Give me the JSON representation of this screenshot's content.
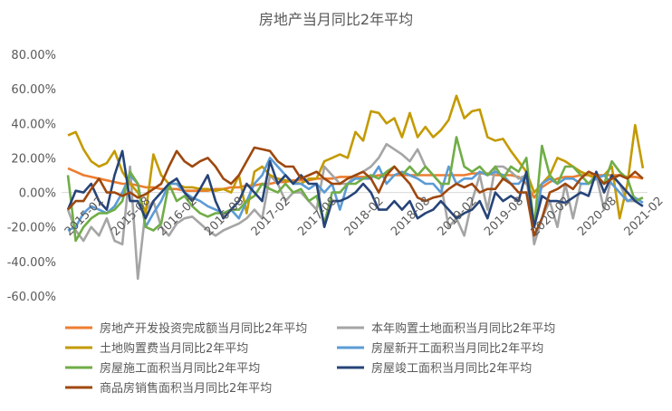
{
  "chart_data": {
    "type": "line",
    "title": "房地产当月同比2年平均",
    "xlabel": "",
    "ylabel": "",
    "ylim": [
      -60,
      80
    ],
    "y_ticks": [
      "80.00%",
      "60.00%",
      "40.00%",
      "20.00%",
      "0.00%",
      "-20.00%",
      "-40.00%",
      "-60.00%"
    ],
    "y_tick_values": [
      80,
      60,
      40,
      20,
      0,
      -20,
      -40,
      -60
    ],
    "x_start": "2015-02",
    "x_end": "2021-04",
    "x_ticks": [
      "2015-02",
      "2015-08",
      "2016-02",
      "2016-08",
      "2017-02",
      "2017-08",
      "2018-02",
      "2018-08",
      "2019-02",
      "2019-08",
      "2020-02",
      "2020-08",
      "2021-02"
    ],
    "grid": "zero line only",
    "legend_position": "bottom",
    "series": [
      {
        "name": "房地产开发投资完成额当月同比2年平均",
        "color": "#ED7D31",
        "values": [
          14,
          12,
          10,
          9,
          8,
          7,
          6,
          5,
          5,
          4,
          3,
          3,
          2,
          2,
          2,
          1,
          1,
          1,
          1,
          2,
          2,
          3,
          3,
          4,
          4,
          5,
          5,
          6,
          6,
          7,
          7,
          7,
          8,
          8,
          8,
          9,
          9,
          9,
          9,
          9,
          10,
          10,
          10,
          10,
          10,
          10,
          10,
          10,
          10,
          10,
          10,
          10,
          11,
          11,
          11,
          10,
          10,
          10,
          9,
          5,
          -3,
          3,
          6,
          8,
          9,
          9,
          10,
          10,
          10,
          10,
          10,
          10,
          9,
          9,
          8
        ]
      },
      {
        "name": "本年购置土地面积当月同比2年平均",
        "color": "#A5A5A5",
        "values": [
          -10,
          -22,
          -28,
          -20,
          -25,
          -15,
          -28,
          -30,
          15,
          -50,
          -10,
          -5,
          -20,
          -25,
          -18,
          -15,
          -14,
          -18,
          -22,
          -25,
          -22,
          -20,
          -18,
          -15,
          -10,
          -15,
          10,
          5,
          -5,
          0,
          0,
          -5,
          -10,
          15,
          10,
          5,
          5,
          10,
          12,
          15,
          20,
          28,
          25,
          22,
          18,
          25,
          15,
          10,
          5,
          -20,
          -15,
          -25,
          -5,
          10,
          -10,
          15,
          15,
          12,
          8,
          10,
          -30,
          -15,
          -5,
          -20,
          5,
          -15,
          5,
          5,
          10,
          -10,
          10,
          5,
          -5,
          -5,
          -3
        ]
      },
      {
        "name": "土地购置费当月同比2年平均",
        "color": "#C49A00",
        "values": [
          33,
          35,
          25,
          18,
          15,
          17,
          24,
          12,
          5,
          0,
          -12,
          22,
          10,
          5,
          5,
          3,
          3,
          2,
          2,
          1,
          2,
          0,
          10,
          -12,
          12,
          15,
          10,
          8,
          7,
          6,
          5,
          8,
          8,
          18,
          20,
          22,
          20,
          35,
          30,
          47,
          46,
          40,
          43,
          32,
          46,
          32,
          38,
          32,
          36,
          42,
          56,
          43,
          47,
          48,
          32,
          30,
          31,
          24,
          18,
          12,
          0,
          5,
          10,
          20,
          18,
          15,
          12,
          10,
          8,
          10,
          15,
          -15,
          5,
          39,
          14
        ]
      },
      {
        "name": "房屋新开工面积当月同比2年平均",
        "color": "#5B9BD5",
        "values": [
          -22,
          -20,
          -12,
          -8,
          -10,
          -12,
          -8,
          0,
          10,
          5,
          -20,
          -12,
          -5,
          5,
          5,
          0,
          -3,
          -5,
          -8,
          -10,
          -12,
          -10,
          -15,
          -5,
          5,
          10,
          20,
          15,
          10,
          5,
          5,
          2,
          5,
          0,
          5,
          -10,
          5,
          8,
          8,
          8,
          15,
          5,
          10,
          12,
          10,
          8,
          5,
          5,
          0,
          15,
          5,
          8,
          8,
          12,
          10,
          12,
          10,
          5,
          5,
          10,
          -20,
          5,
          8,
          5,
          8,
          8,
          5,
          5,
          8,
          10,
          5,
          0,
          -5,
          -3,
          -6
        ]
      },
      {
        "name": "房屋施工面积当月同比2年平均",
        "color": "#70AD47",
        "values": [
          10,
          -28,
          -20,
          -15,
          -12,
          -12,
          -10,
          -5,
          12,
          5,
          -20,
          -22,
          -18,
          5,
          -5,
          -2,
          -8,
          -12,
          -14,
          -12,
          -12,
          -10,
          -10,
          -5,
          -2,
          5,
          2,
          0,
          5,
          0,
          2,
          -5,
          -2,
          -18,
          0,
          0,
          5,
          5,
          8,
          10,
          8,
          12,
          15,
          10,
          15,
          10,
          15,
          10,
          5,
          5,
          32,
          15,
          12,
          15,
          10,
          15,
          8,
          15,
          12,
          20,
          -20,
          27,
          10,
          5,
          15,
          15,
          10,
          5,
          10,
          5,
          18,
          12,
          8,
          -5,
          -3
        ]
      },
      {
        "name": "房屋竣工面积当月同比2年平均",
        "color": "#264478",
        "values": [
          -10,
          1,
          0,
          5,
          -5,
          -10,
          10,
          24,
          -5,
          -5,
          -15,
          -5,
          0,
          5,
          8,
          0,
          -5,
          2,
          10,
          -5,
          -15,
          -10,
          -5,
          5,
          0,
          -5,
          18,
          5,
          10,
          5,
          10,
          5,
          5,
          -20,
          -5,
          -5,
          -3,
          0,
          5,
          0,
          -10,
          -10,
          -5,
          -10,
          -5,
          -15,
          -12,
          -10,
          -5,
          -10,
          -15,
          -12,
          -10,
          -5,
          -15,
          0,
          -5,
          -2,
          -5,
          12,
          -20,
          -2,
          -5,
          -5,
          -6,
          -3,
          0,
          -2,
          12,
          0,
          10,
          5,
          0,
          -5,
          -8
        ]
      },
      {
        "name": "商品房销售面积当月同比2年平均",
        "color": "#9E480E",
        "values": [
          -10,
          -5,
          -5,
          2,
          8,
          0,
          0,
          -2,
          0,
          -3,
          -1,
          2,
          5,
          15,
          24,
          18,
          15,
          18,
          20,
          15,
          8,
          5,
          10,
          18,
          26,
          25,
          24,
          18,
          15,
          15,
          8,
          10,
          12,
          8,
          5,
          5,
          8,
          10,
          12,
          8,
          0,
          10,
          15,
          10,
          5,
          -3,
          -5,
          -3,
          -2,
          2,
          5,
          3,
          5,
          0,
          2,
          2,
          8,
          5,
          0,
          0,
          -25,
          -15,
          0,
          2,
          5,
          2,
          8,
          12,
          10,
          5,
          8,
          10,
          8,
          12,
          8
        ]
      }
    ]
  }
}
